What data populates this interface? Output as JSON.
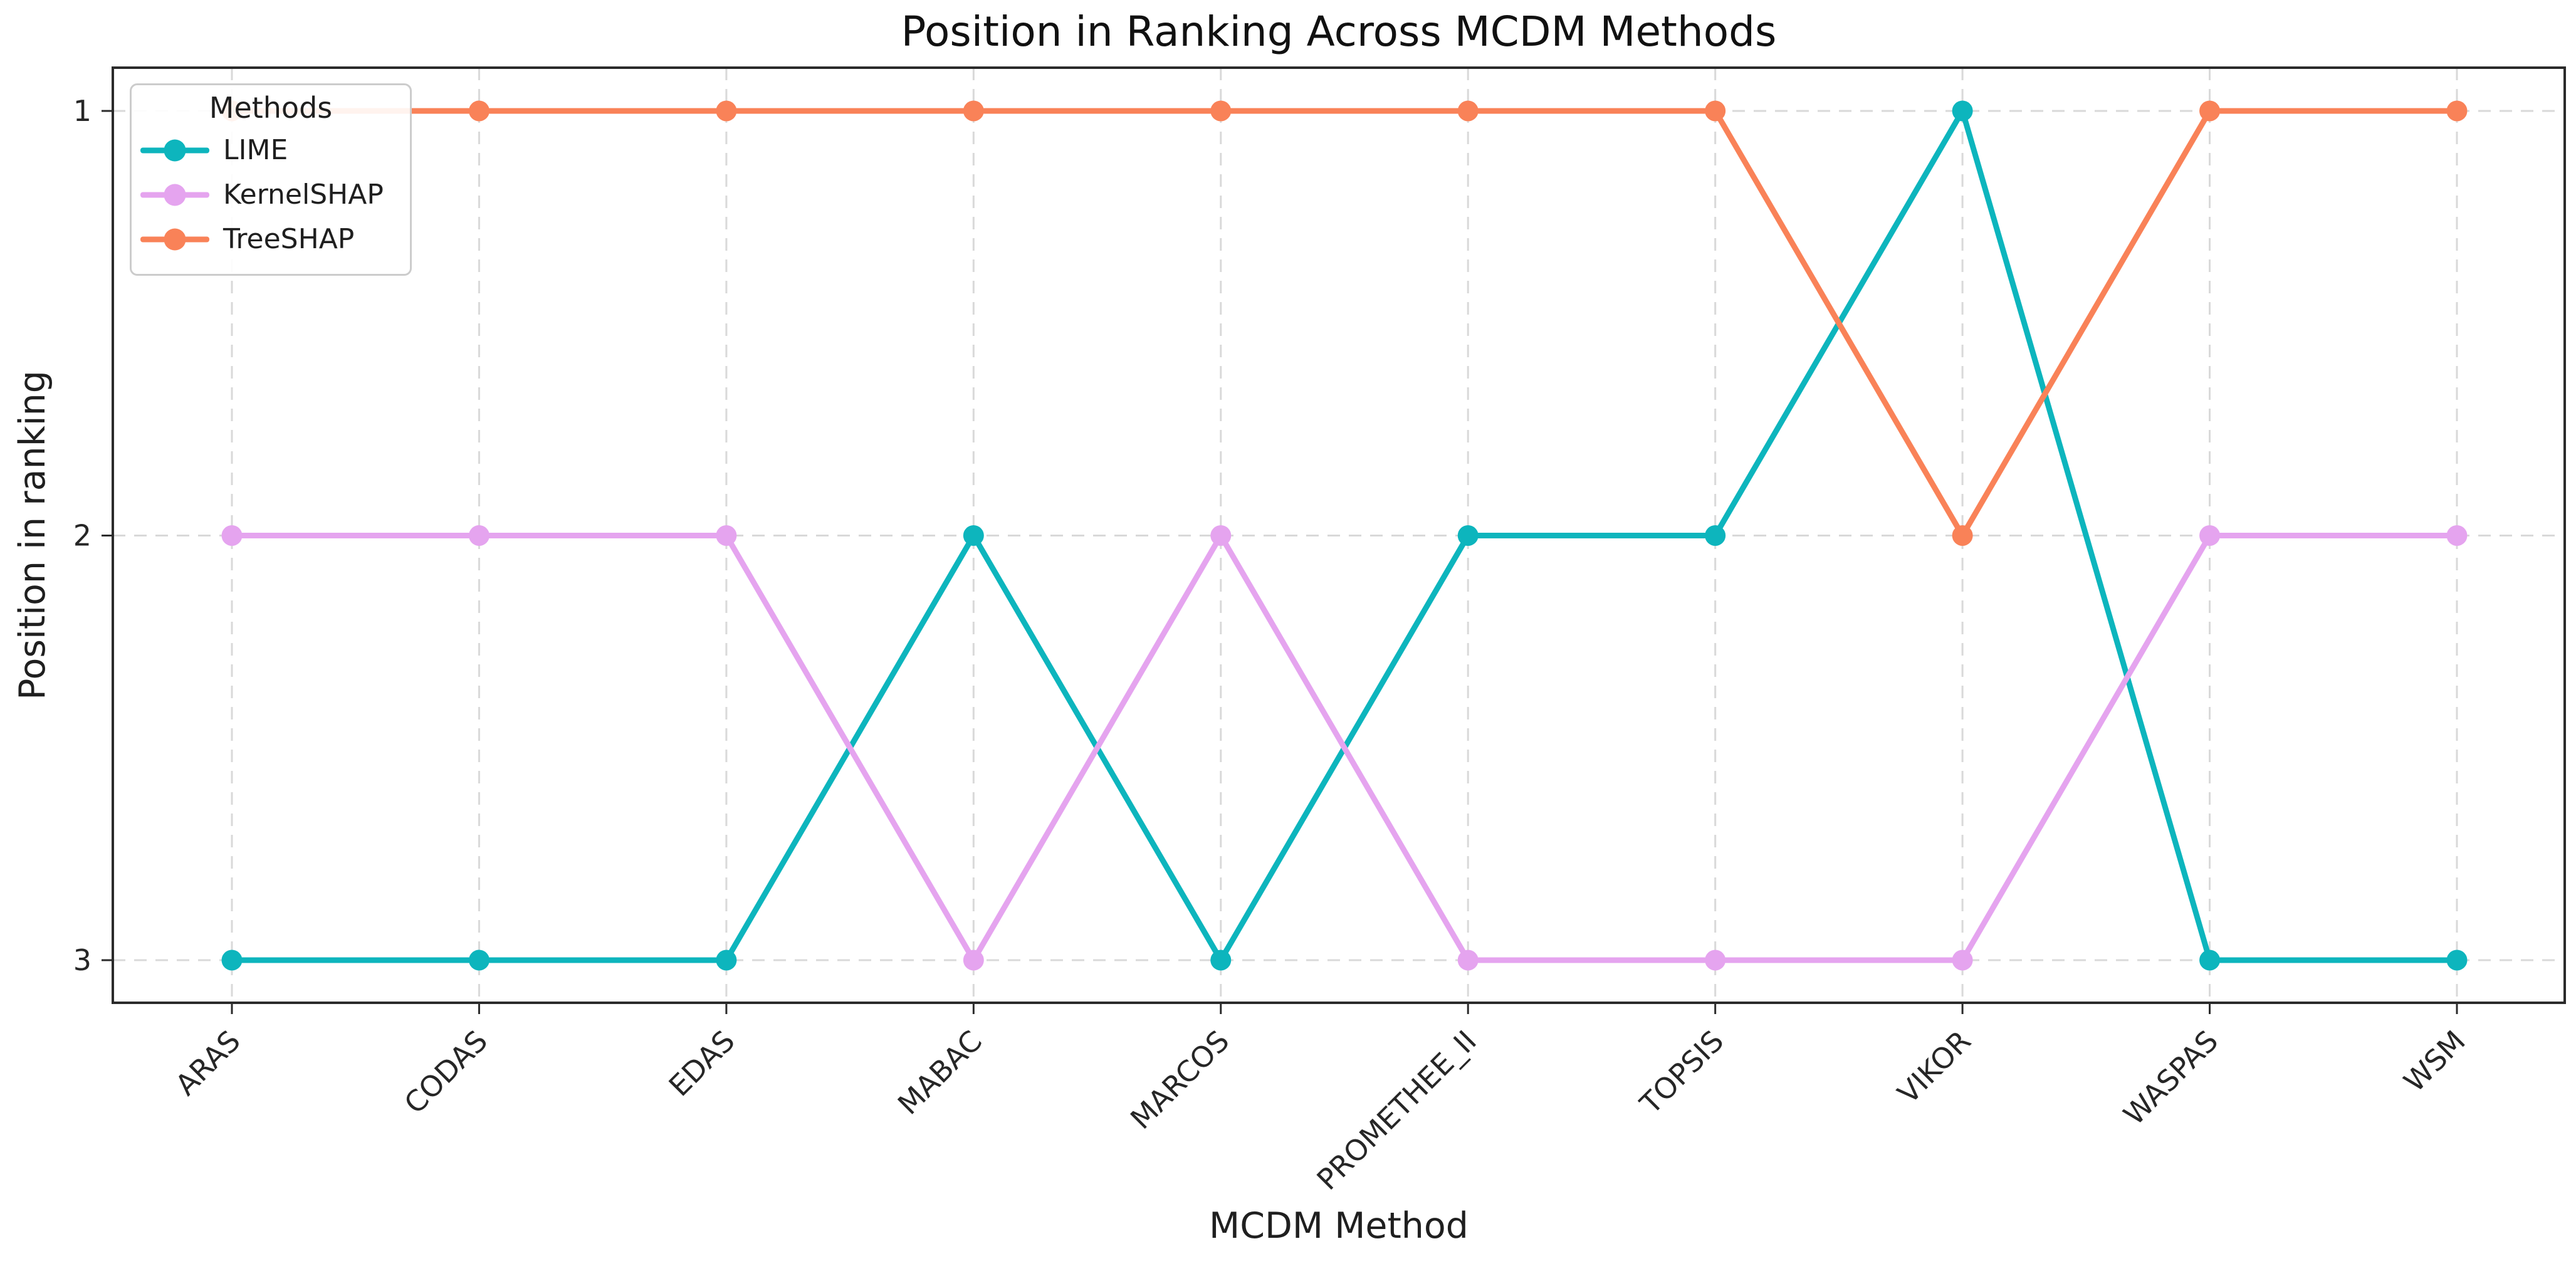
{
  "figure": {
    "title": "Position in Ranking Across MCDM Methods"
  },
  "chart_data": {
    "type": "line",
    "title": "Position in Ranking Across MCDM Methods",
    "xlabel": "MCDM Method",
    "ylabel": "Position in ranking",
    "categories": [
      "ARAS",
      "CODAS",
      "EDAS",
      "MABAC",
      "MARCOS",
      "PROMETHEE_II",
      "TOPSIS",
      "VIKOR",
      "WASPAS",
      "WSM"
    ],
    "yticks": [
      "1",
      "2",
      "3"
    ],
    "y_axis_inverted": true,
    "ylim": [
      0.9,
      3.1
    ],
    "grid": true,
    "grid_style": "dashed",
    "legend": {
      "title": "Methods",
      "position": "upper left"
    },
    "series": [
      {
        "name": "LIME",
        "color": "#0db5bd",
        "values": [
          3,
          3,
          3,
          2,
          3,
          2,
          2,
          1,
          3,
          3
        ]
      },
      {
        "name": "KernelSHAP",
        "color": "#e5a4ef",
        "values": [
          2,
          2,
          2,
          3,
          2,
          3,
          3,
          3,
          2,
          2
        ]
      },
      {
        "name": "TreeSHAP",
        "color": "#f98258",
        "values": [
          1,
          1,
          1,
          1,
          1,
          1,
          1,
          2,
          1,
          1
        ]
      }
    ],
    "styling": {
      "grid_color": "#d9d9d9",
      "spine_color": "#2b2b2b",
      "tick_label_color": "#262626",
      "background": "#ffffff"
    }
  }
}
